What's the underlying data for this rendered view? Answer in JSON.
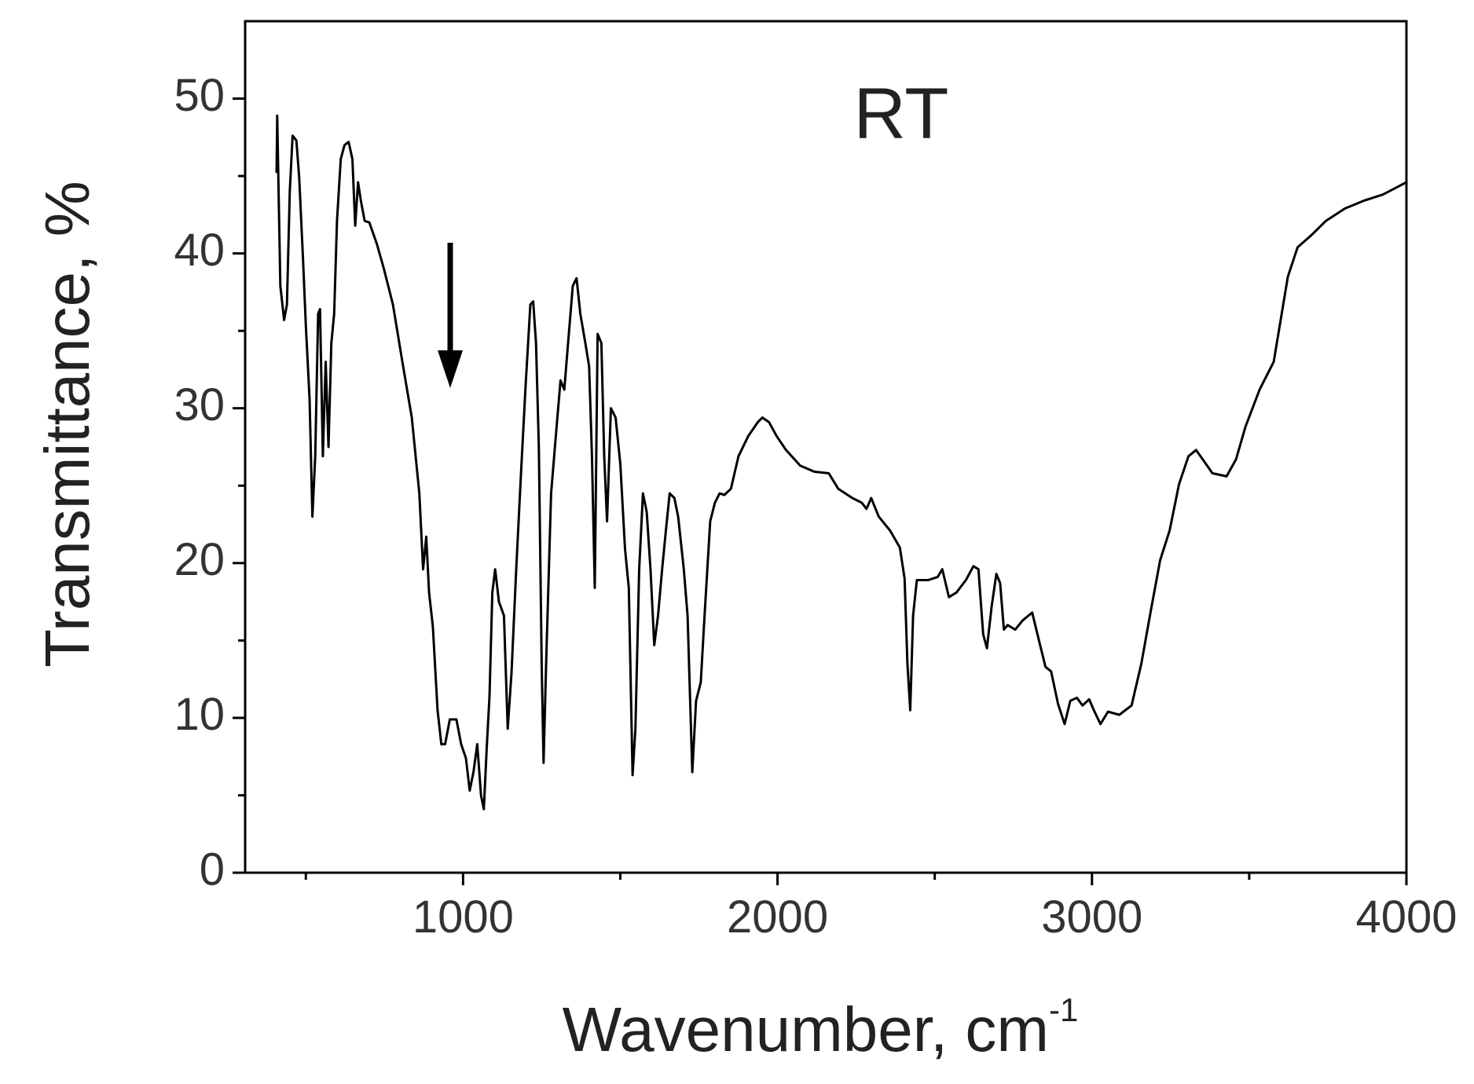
{
  "chart_data": {
    "type": "line",
    "x_label": "Wavenumber, cm",
    "x_label_superscript": "-1",
    "y_label": "Transmittance, %",
    "annotation": "RT",
    "xlim": [
      307,
      4000
    ],
    "ylim": [
      0,
      55
    ],
    "xticks": [
      1000,
      2000,
      3000,
      4000
    ],
    "yticks": [
      0,
      10,
      20,
      30,
      40,
      50
    ],
    "xminorticks": [
      500,
      1500,
      2500,
      3500
    ],
    "yminorticks": [
      5,
      15,
      25,
      35,
      45
    ],
    "series": [
      {
        "color": "#000000",
        "x": [
          407,
          409,
          419,
          431,
          440,
          449,
          458,
          470,
          479,
          491,
          500,
          512,
          521,
          530,
          539,
          545,
          554,
          563,
          572,
          581,
          590,
          599,
          611,
          623,
          636,
          648,
          657,
          666,
          675,
          687,
          702,
          726,
          747,
          777,
          807,
          837,
          861,
          873,
          883,
          892,
          904,
          919,
          931,
          943,
          958,
          979,
          994,
          1009,
          1021,
          1033,
          1045,
          1057,
          1066,
          1075,
          1084,
          1093,
          1102,
          1114,
          1130,
          1142,
          1154,
          1169,
          1184,
          1199,
          1214,
          1223,
          1232,
          1241,
          1250,
          1256,
          1265,
          1280,
          1295,
          1310,
          1322,
          1334,
          1349,
          1361,
          1373,
          1389,
          1401,
          1410,
          1419,
          1428,
          1440,
          1449,
          1458,
          1470,
          1485,
          1500,
          1515,
          1527,
          1539,
          1548,
          1560,
          1572,
          1584,
          1596,
          1608,
          1620,
          1633,
          1645,
          1657,
          1672,
          1684,
          1702,
          1714,
          1729,
          1741,
          1756,
          1768,
          1786,
          1801,
          1816,
          1831,
          1852,
          1876,
          1907,
          1937,
          1952,
          1973,
          1997,
          2027,
          2072,
          2117,
          2163,
          2193,
          2238,
          2268,
          2283,
          2298,
          2322,
          2358,
          2389,
          2404,
          2413,
          2422,
          2431,
          2443,
          2479,
          2509,
          2524,
          2545,
          2569,
          2599,
          2623,
          2639,
          2654,
          2666,
          2681,
          2696,
          2708,
          2720,
          2732,
          2756,
          2780,
          2810,
          2834,
          2852,
          2870,
          2892,
          2913,
          2931,
          2952,
          2970,
          2991,
          3006,
          3027,
          3051,
          3087,
          3126,
          3157,
          3187,
          3217,
          3247,
          3277,
          3307,
          3331,
          3352,
          3383,
          3428,
          3458,
          3488,
          3533,
          3578,
          3623,
          3654,
          3699,
          3744,
          3804,
          3864,
          3925,
          4000
        ],
        "values": [
          45.2,
          48.9,
          37.9,
          35.7,
          36.7,
          44.0,
          47.6,
          47.3,
          44.9,
          39.7,
          35.4,
          30.6,
          23.0,
          26.9,
          36.1,
          36.4,
          26.9,
          33.0,
          27.5,
          34.2,
          36.1,
          42.1,
          46.1,
          47.0,
          47.2,
          46.1,
          41.8,
          44.6,
          43.4,
          42.1,
          42.0,
          40.6,
          39.1,
          36.7,
          33.0,
          29.4,
          24.5,
          19.6,
          21.7,
          18.1,
          15.9,
          10.5,
          8.3,
          8.3,
          9.9,
          9.9,
          8.3,
          7.4,
          5.3,
          6.5,
          8.3,
          5.0,
          4.1,
          8.0,
          11.4,
          18.1,
          19.6,
          17.5,
          16.6,
          9.3,
          12.9,
          19.6,
          25.7,
          31.5,
          36.7,
          36.9,
          34.2,
          27.5,
          13.5,
          7.1,
          14.1,
          24.5,
          28.2,
          31.8,
          31.2,
          34.2,
          37.9,
          38.4,
          36.1,
          34.2,
          32.7,
          26.9,
          18.4,
          34.8,
          34.2,
          26.9,
          22.7,
          30.0,
          29.4,
          26.4,
          20.9,
          18.4,
          6.3,
          9.3,
          19.6,
          24.5,
          23.3,
          19.6,
          14.7,
          16.6,
          19.6,
          22.1,
          24.5,
          24.2,
          23.0,
          19.6,
          16.6,
          6.5,
          11.1,
          12.3,
          16.6,
          22.7,
          23.9,
          24.5,
          24.4,
          24.8,
          26.9,
          28.2,
          29.1,
          29.4,
          29.1,
          28.2,
          27.3,
          26.3,
          25.9,
          25.8,
          24.8,
          24.2,
          23.9,
          23.5,
          24.2,
          23.0,
          22.1,
          21.0,
          19.0,
          13.5,
          10.5,
          16.6,
          18.9,
          18.9,
          19.1,
          19.6,
          17.8,
          18.1,
          18.9,
          19.8,
          19.6,
          15.4,
          14.5,
          17.2,
          19.3,
          18.7,
          15.7,
          16.0,
          15.7,
          16.3,
          16.8,
          14.8,
          13.3,
          13.0,
          10.9,
          9.6,
          11.1,
          11.3,
          10.8,
          11.2,
          10.5,
          9.6,
          10.4,
          10.2,
          10.8,
          13.5,
          16.9,
          20.2,
          22.1,
          25.1,
          26.9,
          27.3,
          26.7,
          25.8,
          25.6,
          26.7,
          28.8,
          31.2,
          33.0,
          38.5,
          40.4,
          41.2,
          42.1,
          42.9,
          43.4,
          43.8,
          44.6
        ]
      }
    ]
  }
}
